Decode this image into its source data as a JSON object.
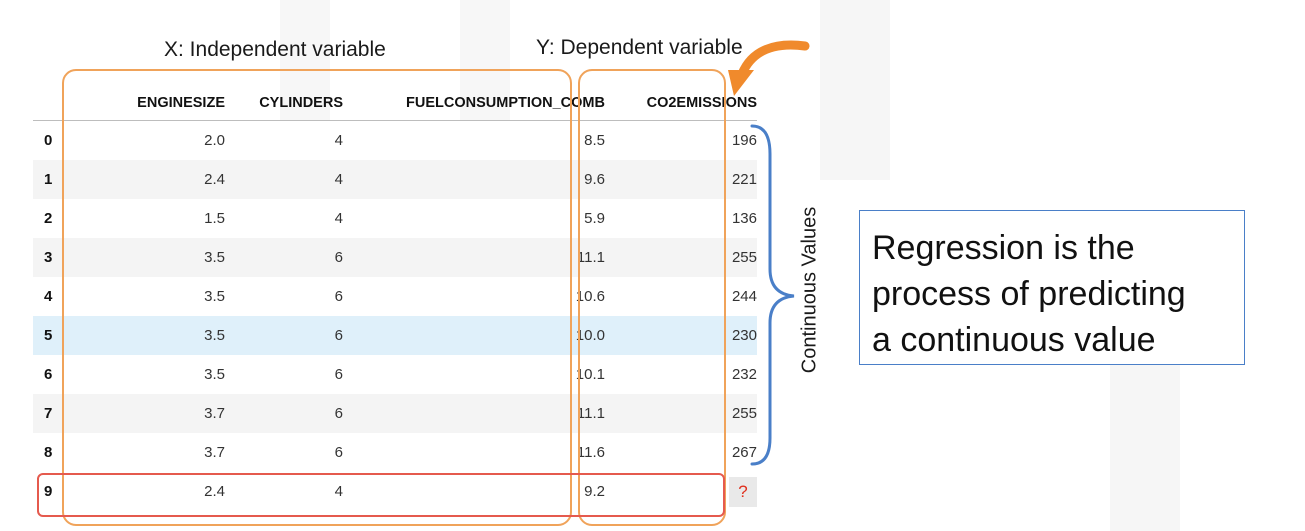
{
  "labels": {
    "x_label": "X: Independent variable",
    "y_label": "Y: Dependent variable",
    "continuous": "Continuous Values"
  },
  "table": {
    "headers": [
      "",
      "ENGINESIZE",
      "CYLINDERS",
      "FUELCONSUMPTION_COMB",
      "CO2EMISSIONS"
    ],
    "rows": [
      {
        "index": "0",
        "enginesize": "2.0",
        "cylinders": "4",
        "fuel": "8.5",
        "co2": "196"
      },
      {
        "index": "1",
        "enginesize": "2.4",
        "cylinders": "4",
        "fuel": "9.6",
        "co2": "221"
      },
      {
        "index": "2",
        "enginesize": "1.5",
        "cylinders": "4",
        "fuel": "5.9",
        "co2": "136"
      },
      {
        "index": "3",
        "enginesize": "3.5",
        "cylinders": "6",
        "fuel": "11.1",
        "co2": "255"
      },
      {
        "index": "4",
        "enginesize": "3.5",
        "cylinders": "6",
        "fuel": "10.6",
        "co2": "244"
      },
      {
        "index": "5",
        "enginesize": "3.5",
        "cylinders": "6",
        "fuel": "10.0",
        "co2": "230"
      },
      {
        "index": "6",
        "enginesize": "3.5",
        "cylinders": "6",
        "fuel": "10.1",
        "co2": "232"
      },
      {
        "index": "7",
        "enginesize": "3.7",
        "cylinders": "6",
        "fuel": "11.1",
        "co2": "255"
      },
      {
        "index": "8",
        "enginesize": "3.7",
        "cylinders": "6",
        "fuel": "11.6",
        "co2": "267"
      },
      {
        "index": "9",
        "enginesize": "2.4",
        "cylinders": "4",
        "fuel": "9.2",
        "co2": "?"
      }
    ]
  },
  "callout": {
    "lines": [
      "Regression is the",
      "process of predicting",
      "a continuous value"
    ]
  },
  "colors": {
    "group_box": "#f0a35a",
    "unknown_row_box": "#e55a4e",
    "highlight_row": "#dff0fa",
    "brace": "#4a7fc8",
    "arrow": "#f08a2c",
    "question_mark": "#e0301e"
  }
}
